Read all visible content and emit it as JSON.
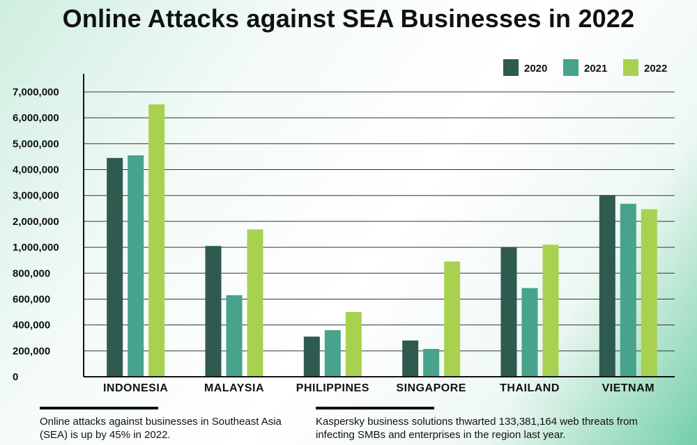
{
  "title": "Online Attacks against SEA Businesses in 2022",
  "chart_data": {
    "type": "bar",
    "title": "Online Attacks against SEA Businesses in 2022",
    "categories": [
      "INDONESIA",
      "MALAYSIA",
      "PHILIPPINES",
      "SINGAPORE",
      "THAILAND",
      "VIETNAM"
    ],
    "series": [
      {
        "name": "2020",
        "color": "#2f5a50",
        "values": [
          4450000,
          1050000,
          310000,
          280000,
          1010000,
          3020000
        ]
      },
      {
        "name": "2021",
        "color": "#47a38b",
        "values": [
          4550000,
          630000,
          360000,
          215000,
          685000,
          2680000
        ]
      },
      {
        "name": "2022",
        "color": "#a8d150",
        "values": [
          6520000,
          1690000,
          500000,
          890000,
          1100000,
          2470000
        ]
      }
    ],
    "y_ticks": [
      {
        "label": "0",
        "value": 0
      },
      {
        "label": "200,000",
        "value": 200000
      },
      {
        "label": "400,000",
        "value": 400000
      },
      {
        "label": "600,000",
        "value": 600000
      },
      {
        "label": "800,000",
        "value": 800000
      },
      {
        "label": "1,000,000",
        "value": 1000000
      },
      {
        "label": "2,000,000",
        "value": 2000000
      },
      {
        "label": "3,000,000",
        "value": 3000000
      },
      {
        "label": "4,000,000",
        "value": 4000000
      },
      {
        "label": "5,000,000",
        "value": 5000000
      },
      {
        "label": "6,000,000",
        "value": 6000000
      },
      {
        "label": "7,000,000",
        "value": 7000000
      }
    ],
    "xlabel": "",
    "ylabel": "",
    "grid": true,
    "legend_position": "top-right"
  },
  "notes": [
    "Online attacks against businesses in Southeast Asia (SEA) is up by 45% in 2022.",
    "Kaspersky business solutions thwarted 133,381,164 web threats from infecting SMBs and enterprises in the region last year."
  ]
}
